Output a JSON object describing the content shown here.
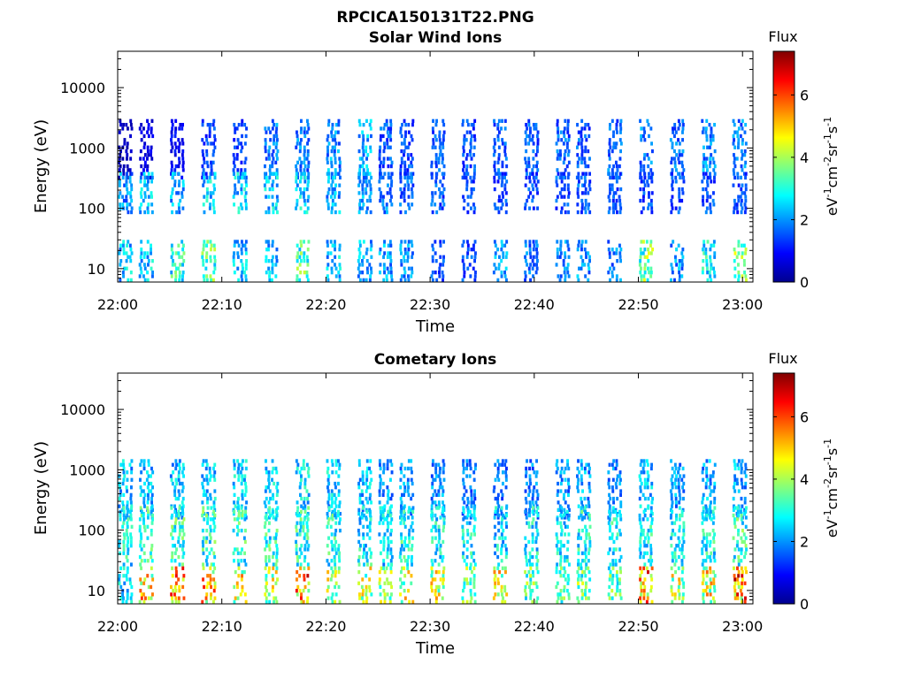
{
  "figure": {
    "title": "RPCICA150131T22.PNG"
  },
  "colorbar_scale": {
    "colormap": "jet",
    "min": 0,
    "max": 7.4,
    "ticks": [
      "0",
      "2",
      "4",
      "6"
    ]
  },
  "chart_data": [
    {
      "type": "heatmap",
      "title": "Solar Wind Ions",
      "xlabel": "Time",
      "ylabel": "Energy (eV)",
      "y_scale": "log",
      "ylim": [
        6,
        40000
      ],
      "xlim": [
        "22:00",
        "23:01"
      ],
      "x_ticks": [
        "22:00",
        "22:10",
        "22:20",
        "22:30",
        "22:40",
        "22:50",
        "23:00"
      ],
      "y_ticks": [
        "10",
        "100",
        "1000",
        "10000"
      ],
      "colorbar_title": "Flux",
      "colorbar_unit": "eV-1cm-2sr-1s-1",
      "grid": false,
      "activity_bands": [
        {
          "name": "upper",
          "e_min": 300,
          "e_max": 3000
        },
        {
          "name": "middle",
          "e_min": 80,
          "e_max": 400
        },
        {
          "name": "lower",
          "e_min": 6,
          "e_max": 30
        }
      ],
      "bursts": [
        {
          "t": "22:00",
          "amp": [
            0.5,
            2.2,
            2.6
          ]
        },
        {
          "t": "22:02",
          "amp": [
            0.8,
            2.5,
            2.7
          ]
        },
        {
          "t": "22:05",
          "amp": [
            1.0,
            2.4,
            3.2
          ]
        },
        {
          "t": "22:08",
          "amp": [
            1.5,
            2.7,
            3.6
          ]
        },
        {
          "t": "22:11",
          "amp": [
            1.4,
            2.7,
            2.6
          ]
        },
        {
          "t": "22:14",
          "amp": [
            2.0,
            2.7,
            2.5
          ]
        },
        {
          "t": "22:17",
          "amp": [
            2.0,
            2.7,
            3.6
          ]
        },
        {
          "t": "22:20",
          "amp": [
            2.2,
            2.4,
            2.6
          ]
        },
        {
          "t": "22:23",
          "amp": [
            2.4,
            2.3,
            2.4
          ]
        },
        {
          "t": "22:25",
          "amp": [
            1.7,
            2.0,
            2.3
          ]
        },
        {
          "t": "22:27",
          "amp": [
            1.6,
            1.8,
            2.2
          ]
        },
        {
          "t": "22:30",
          "amp": [
            1.7,
            1.7,
            1.7
          ]
        },
        {
          "t": "22:33",
          "amp": [
            1.6,
            1.6,
            1.6
          ]
        },
        {
          "t": "22:36",
          "amp": [
            1.7,
            1.6,
            2.2
          ]
        },
        {
          "t": "22:39",
          "amp": [
            1.7,
            1.6,
            1.9
          ]
        },
        {
          "t": "22:42",
          "amp": [
            1.8,
            1.6,
            2.1
          ]
        },
        {
          "t": "22:44",
          "amp": [
            1.7,
            1.7,
            2.2
          ]
        },
        {
          "t": "22:47",
          "amp": [
            1.9,
            1.6,
            2.0
          ]
        },
        {
          "t": "22:50",
          "amp": [
            2.0,
            1.6,
            3.9
          ]
        },
        {
          "t": "22:53",
          "amp": [
            1.9,
            1.6,
            2.2
          ]
        },
        {
          "t": "22:56",
          "amp": [
            2.1,
            1.6,
            3.0
          ]
        },
        {
          "t": "22:59",
          "amp": [
            2.0,
            1.6,
            4.4
          ]
        }
      ]
    },
    {
      "type": "heatmap",
      "title": "Cometary Ions",
      "xlabel": "Time",
      "ylabel": "Energy (eV)",
      "y_scale": "log",
      "ylim": [
        6,
        40000
      ],
      "xlim": [
        "22:00",
        "23:01"
      ],
      "x_ticks": [
        "22:00",
        "22:10",
        "22:20",
        "22:30",
        "22:40",
        "22:50",
        "23:00"
      ],
      "y_ticks": [
        "10",
        "100",
        "1000",
        "10000"
      ],
      "colorbar_title": "Flux",
      "colorbar_unit": "eV-1cm-2sr-1s-1",
      "grid": false,
      "activity_bands": [
        {
          "name": "upper",
          "e_min": 150,
          "e_max": 1500
        },
        {
          "name": "middle",
          "e_min": 25,
          "e_max": 250
        },
        {
          "name": "lower",
          "e_min": 6,
          "e_max": 25
        }
      ],
      "bursts": [
        {
          "t": "22:00",
          "amp": [
            2.6,
            3.0,
            2.8
          ]
        },
        {
          "t": "22:02",
          "amp": [
            2.6,
            3.2,
            5.1
          ]
        },
        {
          "t": "22:05",
          "amp": [
            2.6,
            3.4,
            5.6
          ]
        },
        {
          "t": "22:08",
          "amp": [
            2.7,
            3.4,
            5.5
          ]
        },
        {
          "t": "22:11",
          "amp": [
            2.7,
            3.3,
            4.8
          ]
        },
        {
          "t": "22:14",
          "amp": [
            2.7,
            3.3,
            4.4
          ]
        },
        {
          "t": "22:17",
          "amp": [
            2.8,
            3.3,
            5.8
          ]
        },
        {
          "t": "22:20",
          "amp": [
            2.7,
            3.2,
            4.8
          ]
        },
        {
          "t": "22:23",
          "amp": [
            2.6,
            3.0,
            4.5
          ]
        },
        {
          "t": "22:25",
          "amp": [
            2.3,
            2.8,
            4.1
          ]
        },
        {
          "t": "22:27",
          "amp": [
            2.3,
            3.2,
            4.6
          ]
        },
        {
          "t": "22:30",
          "amp": [
            2.2,
            3.0,
            4.7
          ]
        },
        {
          "t": "22:33",
          "amp": [
            1.9,
            3.0,
            3.9
          ]
        },
        {
          "t": "22:36",
          "amp": [
            2.0,
            2.8,
            4.8
          ]
        },
        {
          "t": "22:39",
          "amp": [
            2.0,
            3.0,
            3.8
          ]
        },
        {
          "t": "22:42",
          "amp": [
            2.2,
            2.9,
            3.6
          ]
        },
        {
          "t": "22:44",
          "amp": [
            2.3,
            3.1,
            3.8
          ]
        },
        {
          "t": "22:47",
          "amp": [
            2.1,
            3.0,
            3.6
          ]
        },
        {
          "t": "22:50",
          "amp": [
            2.6,
            3.0,
            5.8
          ]
        },
        {
          "t": "22:53",
          "amp": [
            2.2,
            3.0,
            4.5
          ]
        },
        {
          "t": "22:56",
          "amp": [
            2.4,
            3.1,
            4.9
          ]
        },
        {
          "t": "22:59",
          "amp": [
            2.4,
            3.4,
            5.9
          ]
        }
      ]
    }
  ]
}
